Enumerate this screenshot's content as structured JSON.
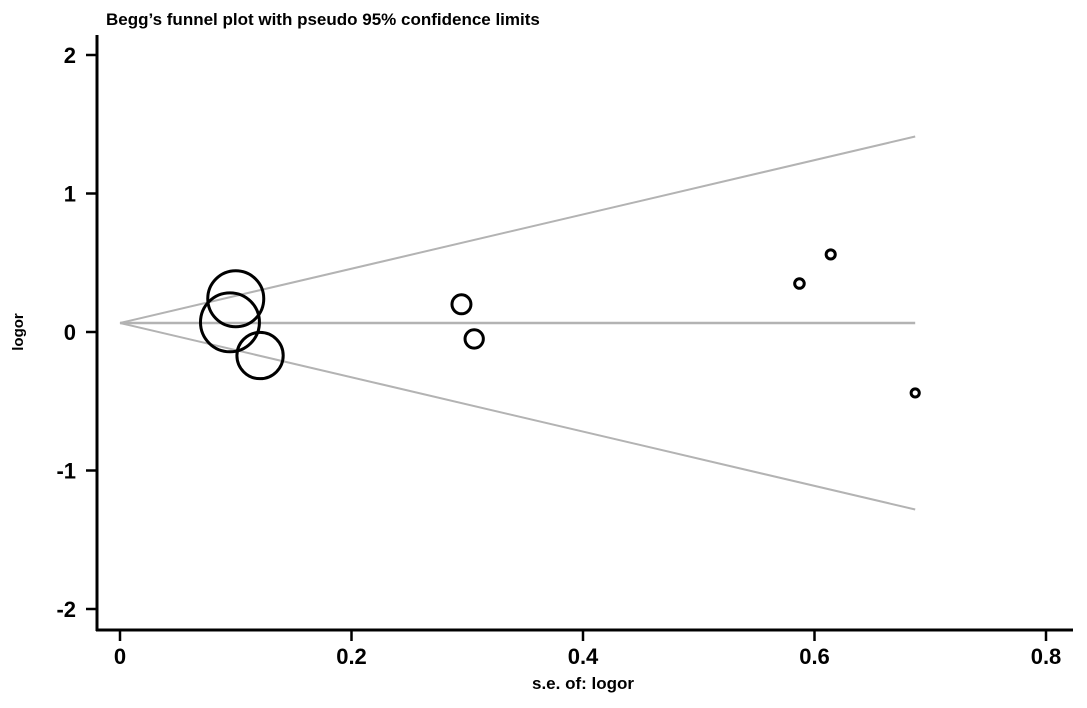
{
  "chart_data": {
    "type": "scatter",
    "title": "Begg’s funnel plot with pseudo 95% confidence limits",
    "xlabel": "s.e. of: logor",
    "ylabel": "logor",
    "xlim": [
      0,
      0.8
    ],
    "ylim": [
      -2,
      2
    ],
    "xticks": [
      "0",
      "0.2",
      "0.4",
      "0.6",
      "0.8"
    ],
    "xtick_values": [
      0,
      0.2,
      0.4,
      0.6,
      0.8
    ],
    "yticks": [
      "2",
      "1",
      "0",
      "-1",
      "-2"
    ],
    "ytick_values": [
      2,
      1,
      0,
      -1,
      -2
    ],
    "grid": false,
    "pooled_estimate": 0.065,
    "confidence_z": 1.96,
    "max_se": 0.687,
    "points": [
      {
        "se": 0.1,
        "logor": 0.24
      },
      {
        "se": 0.095,
        "logor": 0.07
      },
      {
        "se": 0.121,
        "logor": -0.17
      },
      {
        "se": 0.295,
        "logor": 0.2
      },
      {
        "se": 0.306,
        "logor": -0.05
      },
      {
        "se": 0.587,
        "logor": 0.35
      },
      {
        "se": 0.614,
        "logor": 0.56
      },
      {
        "se": 0.687,
        "logor": -0.44
      }
    ],
    "colors": {
      "points": "#000000",
      "lines": "#b3b3b3",
      "axes": "#000000"
    }
  }
}
